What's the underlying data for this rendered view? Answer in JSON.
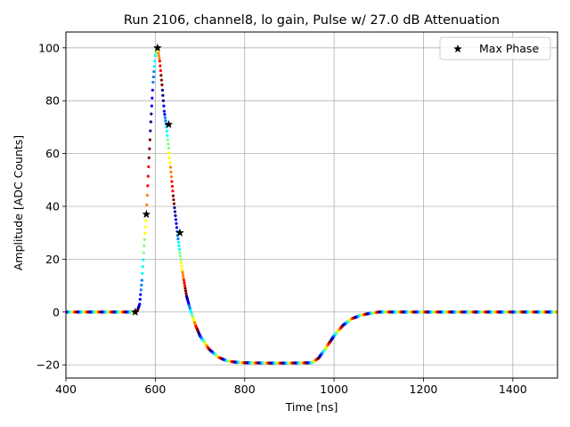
{
  "chart_data": {
    "type": "scatter",
    "title": "Run 2106, channel8, lo gain, Pulse w/ 27.0 dB Attenuation",
    "xlabel": "Time [ns]",
    "ylabel": "Amplitude [ADC Counts]",
    "xlim": [
      400,
      1500
    ],
    "ylim": [
      -25,
      106
    ],
    "xticks": [
      400,
      600,
      800,
      1000,
      1200,
      1400
    ],
    "yticks": [
      -20,
      0,
      20,
      40,
      60,
      80,
      100
    ],
    "xtick_labels": [
      "400",
      "600",
      "800",
      "1000",
      "1200",
      "1400"
    ],
    "ytick_labels": [
      "−20",
      "0",
      "20",
      "40",
      "60",
      "80",
      "100"
    ],
    "grid": true,
    "legend_position": "top-right",
    "pulse_points": {
      "time": [
        400,
        555,
        560,
        565,
        570,
        575,
        580,
        585,
        590,
        595,
        600,
        603,
        606,
        610,
        615,
        620,
        625,
        630,
        640,
        650,
        660,
        670,
        680,
        690,
        700,
        720,
        740,
        760,
        780,
        800,
        850,
        900,
        950,
        965,
        980,
        1000,
        1020,
        1040,
        1060,
        1080,
        1100,
        1150,
        1200,
        1300,
        1400,
        1500
      ],
      "amplitude": [
        0,
        0,
        0.5,
        3,
        12,
        25,
        37,
        55,
        72,
        87,
        97,
        100,
        99,
        95,
        86,
        76,
        70,
        62,
        44,
        29,
        16,
        6,
        0,
        -5,
        -9,
        -14,
        -17,
        -18.5,
        -19,
        -19.2,
        -19.3,
        -19.3,
        -19.2,
        -17.5,
        -14,
        -9,
        -5,
        -2.5,
        -1.2,
        -0.5,
        0,
        0,
        0,
        0,
        0,
        0
      ],
      "colormap": [
        "#00008f",
        "#0000ff",
        "#0080ff",
        "#00ffff",
        "#80ff80",
        "#ffff00",
        "#ff8000",
        "#ff0000",
        "#800000"
      ]
    },
    "series": [
      {
        "name": "Max Phase",
        "marker": "star",
        "color": "#000000",
        "x": [
          555,
          580,
          605,
          630,
          655
        ],
        "y": [
          0,
          37,
          100,
          71,
          30
        ]
      }
    ]
  }
}
